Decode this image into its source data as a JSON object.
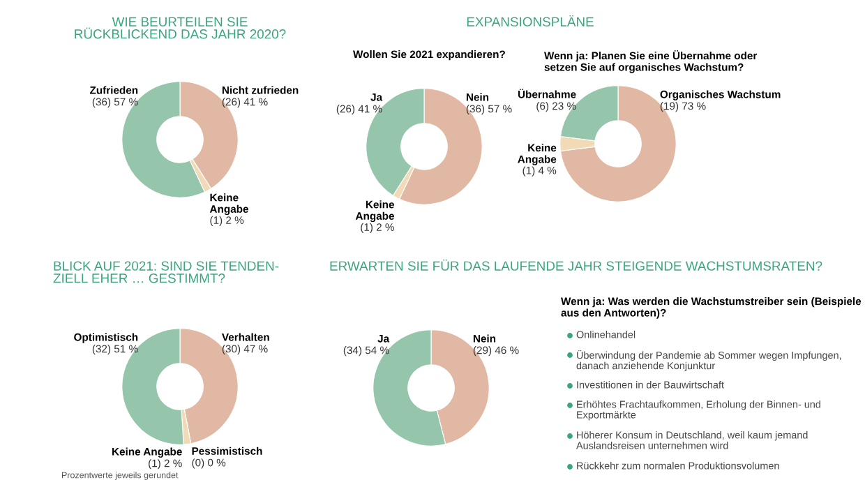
{
  "chart_data": [
    {
      "type": "donut",
      "title": "WIE BEURTEILEN SIE\nRÜCKBLICKEND DAS JAHR 2020?",
      "categories": [
        "Nicht zufrieden",
        "Keine\nAngabe",
        "Zufrieden"
      ],
      "values": [
        41,
        2,
        57
      ],
      "colors": [
        "#e0b8a4",
        "#f1dbb6",
        "#95c5aa"
      ],
      "value_labels": [
        "(26) 41 %",
        "(1) 2 %",
        "(36) 57 %"
      ]
    },
    {
      "type": "donut",
      "title": "EXPANSIONSPLÄNE",
      "subtitle": "Wollen Sie 2021 expandieren?",
      "categories": [
        "Nein",
        "Keine\nAngabe",
        "Ja"
      ],
      "values": [
        57,
        2,
        41
      ],
      "colors": [
        "#e0b8a4",
        "#f1dbb6",
        "#95c5aa"
      ],
      "value_labels": [
        "(36) 57 %",
        "(1) 2 %",
        "(26) 41 %"
      ]
    },
    {
      "type": "donut",
      "subtitle": "Wenn ja: Planen Sie eine Übernahme oder\nsetzen Sie auf organisches Wachstum?",
      "categories": [
        "Organisches Wachstum",
        "Keine\nAngabe",
        "Übernahme"
      ],
      "values": [
        73,
        4,
        23
      ],
      "colors": [
        "#e0b8a4",
        "#f1dbb6",
        "#95c5aa"
      ],
      "value_labels": [
        "(19) 73 %",
        "(1) 4 %",
        "(6) 23 %"
      ]
    },
    {
      "type": "donut",
      "title": "BLICK AUF 2021: SIND SIE TENDEN-\nZIELL EHER … GESTIMMT?",
      "categories": [
        "Verhalten",
        "Pessimistisch",
        "Keine Angabe",
        "Optimistisch"
      ],
      "values": [
        47,
        0,
        2,
        51
      ],
      "colors": [
        "#e0b8a4",
        "#e0b8a4",
        "#f1dbb6",
        "#95c5aa"
      ],
      "value_labels": [
        "(30) 47 %",
        "(0) 0 %",
        "(1) 2 %",
        "(32) 51 %"
      ],
      "annotations": [
        "Prozentwerte jeweils gerundet"
      ]
    },
    {
      "type": "donut",
      "title": "ERWARTEN SIE FÜR DAS LAUFENDE JAHR STEIGENDE WACHSTUMSRATEN?",
      "categories": [
        "Nein",
        "Ja"
      ],
      "values": [
        46,
        54
      ],
      "colors": [
        "#e0b8a4",
        "#95c5aa"
      ],
      "value_labels": [
        "(29) 46 %",
        "(34) 54 %"
      ]
    },
    {
      "type": "other",
      "subtitle": "Wenn ja: Was werden die Wachstumstreiber sein (Beispiele\naus den Antworten)?",
      "annotations": [
        "Onlinehandel",
        "Überwindung der Pandemie ab Sommer wegen Impfungen,\ndanach anziehende Konjunktur",
        "Investitionen in der Bauwirtschaft",
        "Erhöhtes Frachtaufkommen, Erholung der Binnen- und\nExportmärkte",
        "Höherer Konsum in Deutschland, weil kaum jemand\nAuslandsreisen unternehmen wird",
        "Rückkehr zum normalen Produktionsvolumen"
      ]
    }
  ]
}
